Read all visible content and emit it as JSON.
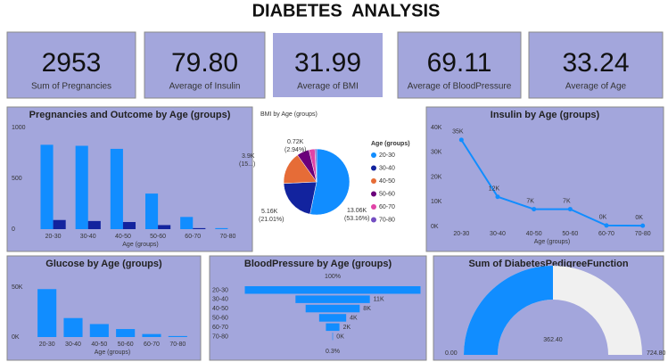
{
  "title": "DIABETES  ANALYSIS",
  "cards": [
    {
      "value": "2953",
      "label": "Sum of Pregnancies"
    },
    {
      "value": "79.80",
      "label": "Average of Insulin"
    },
    {
      "value": "31.99",
      "label": "Average of BMI"
    },
    {
      "value": "69.11",
      "label": "Average of BloodPressure"
    },
    {
      "value": "33.24",
      "label": "Average of Age"
    }
  ],
  "chart_data": [
    {
      "type": "bar",
      "title": "Pregnancies and Outcome by Age (groups)",
      "xlabel": "Age (groups)",
      "categories": [
        "20-30",
        "30-40",
        "40-50",
        "50-60",
        "60-70",
        "70-80"
      ],
      "series": [
        {
          "color": "#118dff",
          "values": [
            830,
            820,
            790,
            350,
            120,
            10
          ]
        },
        {
          "color": "#12239e",
          "values": [
            90,
            80,
            70,
            40,
            10,
            0
          ]
        }
      ],
      "ylim": [
        0,
        1000
      ],
      "yticks": [
        0,
        500,
        1000
      ]
    },
    {
      "type": "pie",
      "title": "BMI by Age (groups)",
      "legend_title": "Age (groups)",
      "categories": [
        "20-30",
        "30-40",
        "40-50",
        "50-60",
        "60-70",
        "70-80"
      ],
      "values": [
        13.06,
        5.16,
        3.9,
        1.5,
        0.72,
        0.2
      ],
      "value_labels": [
        "13.06K",
        "5.16K",
        "3.9K",
        null,
        "0.72K",
        null
      ],
      "percent_labels": [
        "(53.16%)",
        "(21.01%)",
        "(15...)",
        null,
        "(2.94%)",
        null
      ],
      "colors": [
        "#118dff",
        "#12239e",
        "#e66c37",
        "#6b007b",
        "#e044a7",
        "#744ec2"
      ]
    },
    {
      "type": "line",
      "title": "Insulin by Age (groups)",
      "xlabel": "Age (groups)",
      "categories": [
        "20-30",
        "30-40",
        "40-50",
        "50-60",
        "60-70",
        "70-80"
      ],
      "values": [
        35000,
        12000,
        7000,
        7000,
        400,
        300
      ],
      "value_labels": [
        "35K",
        "12K",
        "7K",
        "7K",
        "0K",
        "0K"
      ],
      "color": "#118dff",
      "ylim": [
        0,
        40000
      ],
      "yticks": [
        {
          "value": 0,
          "label": "0K"
        },
        {
          "value": 10000,
          "label": "10K"
        },
        {
          "value": 20000,
          "label": "20K"
        },
        {
          "value": 30000,
          "label": "30K"
        },
        {
          "value": 40000,
          "label": "40K"
        }
      ]
    },
    {
      "type": "bar",
      "title": "Glucose by Age (groups)",
      "xlabel": "Age (groups)",
      "categories": [
        "20-30",
        "30-40",
        "40-50",
        "50-60",
        "60-70",
        "70-80"
      ],
      "series": [
        {
          "color": "#118dff",
          "values": [
            48000,
            19000,
            13000,
            8000,
            3000,
            1000
          ]
        }
      ],
      "ylim": [
        0,
        55000
      ],
      "yticks": [
        {
          "value": 0,
          "label": "0K"
        },
        {
          "value": 50000,
          "label": "50K"
        }
      ]
    },
    {
      "type": "funnel",
      "title": "BloodPressure by Age (groups)",
      "categories": [
        "20-30",
        "30-40",
        "40-50",
        "50-60",
        "60-70",
        "70-80"
      ],
      "values": [
        26000,
        11000,
        8000,
        4000,
        2000,
        80
      ],
      "value_labels": [
        null,
        "11K",
        "8K",
        "4K",
        "2K",
        "0K"
      ],
      "top_label": "100%",
      "bottom_label": "0.3%",
      "color": "#118dff"
    },
    {
      "type": "gauge",
      "title": "Sum of DiabetesPedigreeFunction",
      "value": 362.4,
      "value_label": "362.40",
      "color": "#118dff",
      "ylim": [
        0,
        724.8
      ],
      "yticks": [
        {
          "value": 0,
          "label": "0.00"
        },
        {
          "value": 724.8,
          "label": "724.80"
        }
      ]
    }
  ]
}
